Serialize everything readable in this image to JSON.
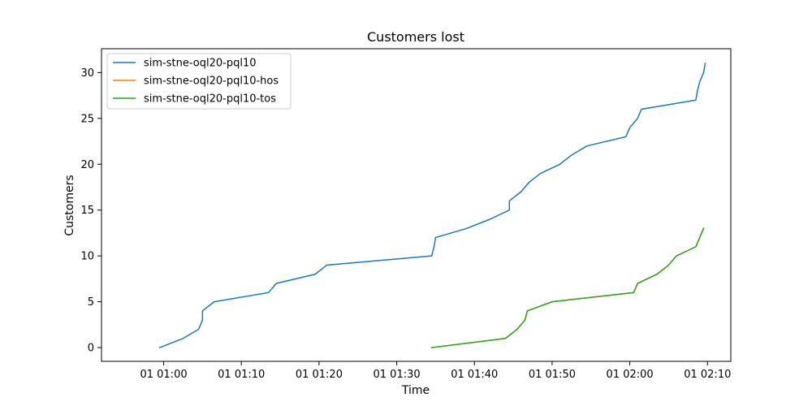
{
  "chart_data": {
    "type": "line",
    "title": "Customers lost",
    "xlabel": "Time",
    "ylabel": "Customers",
    "x_unit": "minutes",
    "xlim": [
      "01 00:52.0",
      "01 02:13.0"
    ],
    "ylim": [
      -1.5,
      32.6
    ],
    "x_ticks": [
      {
        "label": "01 01:00",
        "time": "01 01:00"
      },
      {
        "label": "01 01:10",
        "time": "01 01:10"
      },
      {
        "label": "01 01:20",
        "time": "01 01:20"
      },
      {
        "label": "01 01:30",
        "time": "01 01:30"
      },
      {
        "label": "01 01:40",
        "time": "01 01:40"
      },
      {
        "label": "01 01:50",
        "time": "01 01:50"
      },
      {
        "label": "01 02:00",
        "time": "01 02:00"
      },
      {
        "label": "01 02:10",
        "time": "01 02:10"
      }
    ],
    "y_ticks": [
      0,
      5,
      10,
      15,
      20,
      25,
      30
    ],
    "grid": false,
    "legend_position": "top-left",
    "series": [
      {
        "name": "sim-stne-oql20-pql10",
        "color": "#1f77b4",
        "points": [
          [
            "01 00:59.5",
            0
          ],
          [
            "01 01:02.5",
            1
          ],
          [
            "01 01:04.5",
            2
          ],
          [
            "01 01:05.0",
            3
          ],
          [
            "01 01:05.0",
            4
          ],
          [
            "01 01:06.5",
            5
          ],
          [
            "01 01:13.5",
            6
          ],
          [
            "01 01:14.5",
            7
          ],
          [
            "01 01:19.5",
            8
          ],
          [
            "01 01:21.0",
            9
          ],
          [
            "01 01:34.5",
            10
          ],
          [
            "01 01:34.8",
            11
          ],
          [
            "01 01:35.0",
            12
          ],
          [
            "01 01:39.0",
            13
          ],
          [
            "01 01:42.0",
            14
          ],
          [
            "01 01:44.5",
            15
          ],
          [
            "01 01:44.5",
            16
          ],
          [
            "01 01:46.0",
            17
          ],
          [
            "01 01:47.0",
            18
          ],
          [
            "01 01:48.5",
            19
          ],
          [
            "01 01:51.0",
            20
          ],
          [
            "01 01:52.5",
            21
          ],
          [
            "01 01:54.5",
            22
          ],
          [
            "01 01:59.5",
            23
          ],
          [
            "01 02:00.0",
            24
          ],
          [
            "01 02:01.0",
            25
          ],
          [
            "01 02:01.5",
            26
          ],
          [
            "01 02:08.5",
            27
          ],
          [
            "01 02:08.7",
            28
          ],
          [
            "01 02:09.0",
            29
          ],
          [
            "01 02:09.5",
            30
          ],
          [
            "01 02:09.7",
            31
          ]
        ]
      },
      {
        "name": "sim-stne-oql20-pql10-hos",
        "color": "#ff7f0e",
        "points": [
          [
            "01 01:34.5",
            0
          ],
          [
            "01 01:44.0",
            1
          ],
          [
            "01 01:45.5",
            2
          ],
          [
            "01 01:46.5",
            3
          ],
          [
            "01 01:46.8",
            4
          ],
          [
            "01 01:50.0",
            5
          ],
          [
            "01 02:00.5",
            6
          ],
          [
            "01 02:01.0",
            7
          ],
          [
            "01 02:03.5",
            8
          ],
          [
            "01 02:05.0",
            9
          ],
          [
            "01 02:06.0",
            10
          ],
          [
            "01 02:08.5",
            11
          ],
          [
            "01 02:09.0",
            12
          ],
          [
            "01 02:09.5",
            13
          ]
        ]
      },
      {
        "name": "sim-stne-oql20-pql10-tos",
        "color": "#2ca02c",
        "points": [
          [
            "01 01:34.5",
            0
          ],
          [
            "01 01:44.0",
            1
          ],
          [
            "01 01:45.5",
            2
          ],
          [
            "01 01:46.5",
            3
          ],
          [
            "01 01:46.8",
            4
          ],
          [
            "01 01:50.0",
            5
          ],
          [
            "01 02:00.5",
            6
          ],
          [
            "01 02:01.0",
            7
          ],
          [
            "01 02:03.5",
            8
          ],
          [
            "01 02:05.0",
            9
          ],
          [
            "01 02:06.0",
            10
          ],
          [
            "01 02:08.5",
            11
          ],
          [
            "01 02:09.0",
            12
          ],
          [
            "01 02:09.5",
            13
          ]
        ]
      }
    ]
  }
}
